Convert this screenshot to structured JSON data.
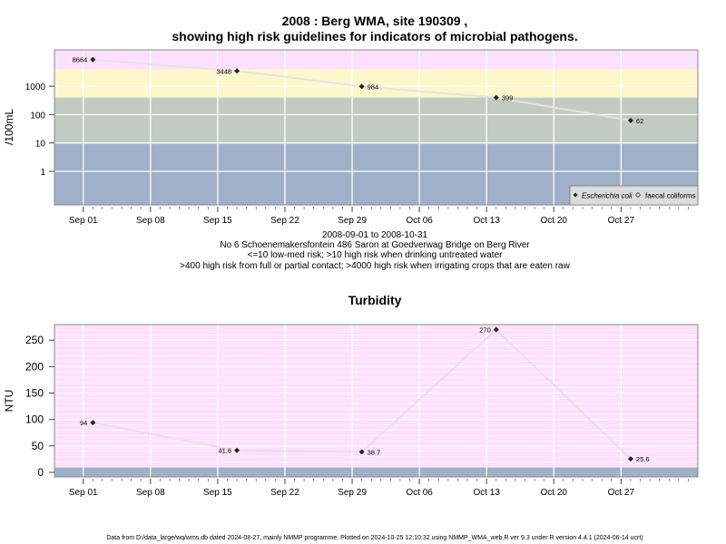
{
  "colors": {
    "band_blue": "#a0b0c8",
    "band_green": "#c2cbc2",
    "band_yellow": "#fdf7cb",
    "band_pink": "#fde0fd",
    "line": "#e4e4e4",
    "point": "#222222",
    "grid": "#ffffff"
  },
  "chart_data": [
    {
      "type": "line",
      "title": "2008 : Berg WMA, site 190309 ,",
      "subtitle": "showing high risk guidelines for indicators of microbial pathogens.",
      "ylabel": "/100mL",
      "scale": "log",
      "yticks": [
        "1",
        "10",
        "100",
        "1000"
      ],
      "xticks": [
        "Sep 01",
        "Sep 08",
        "Sep 15",
        "Sep 22",
        "Sep 29",
        "Oct 06",
        "Oct 13",
        "Oct 20",
        "Oct 27"
      ],
      "grid": true,
      "legend_position": "bottom-right",
      "legend": [
        "Escherichia coli",
        "faecal coliforms"
      ],
      "series": [
        {
          "name": "Escherichia coli",
          "x": [
            "2008-09-02",
            "2008-09-17",
            "2008-09-30",
            "2008-10-14",
            "2008-10-28"
          ],
          "values": [
            8664,
            3448,
            984,
            399,
            62
          ],
          "labels": [
            "8664",
            "3448",
            "984",
            "399",
            "62"
          ]
        }
      ],
      "caption": [
        "2008-09-01 to 2008-10-31",
        "No 6 Schoenemakersfontein 486 Saron at Goedverwag Bridge on Berg River",
        "<=10 low-med risk; >10 high risk when drinking untreated water",
        ">400 high risk from full or partial contact; >4000 high risk when irrigating crops that are eaten raw"
      ]
    },
    {
      "type": "line",
      "title": "Turbidity",
      "ylabel": "NTU",
      "yticks": [
        "0",
        "50",
        "100",
        "150",
        "200",
        "250"
      ],
      "xticks": [
        "Sep 01",
        "Sep 08",
        "Sep 15",
        "Sep 22",
        "Sep 29",
        "Oct 06",
        "Oct 13",
        "Oct 20",
        "Oct 27"
      ],
      "grid": true,
      "series": [
        {
          "x": [
            "2008-09-02",
            "2008-09-17",
            "2008-09-30",
            "2008-10-14",
            "2008-10-28"
          ],
          "values": [
            94,
            41.6,
            38.7,
            270,
            25.6
          ],
          "labels": [
            "94",
            "41.6",
            "38.7",
            "270",
            "25.6"
          ]
        }
      ]
    }
  ],
  "footer": "Data from D:/data_large/wq/wms.db dated 2024-08-27, mainly NMMP programme. Plotted on 2024-10-25 12:10:32 using NMMP_WMA_web.R ver 9.3 under R version 4.4.1 (2024-06-14 ucrt)"
}
